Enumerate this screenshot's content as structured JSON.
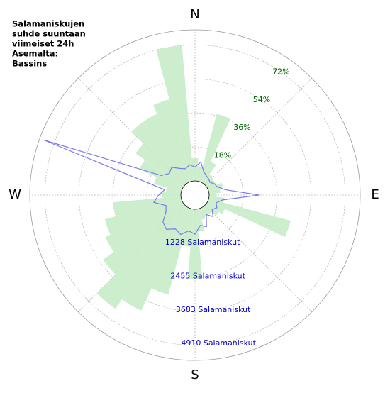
{
  "chart_data": {
    "type": "polar",
    "title_lines": [
      "Salamaniskujen",
      "suhde suuntaan",
      "viimeiset 24h",
      "Asemalta:",
      "Bassins"
    ],
    "x": [
      0,
      10,
      20,
      30,
      40,
      50,
      60,
      70,
      80,
      90,
      100,
      110,
      120,
      130,
      140,
      150,
      160,
      170,
      180,
      190,
      200,
      210,
      220,
      230,
      240,
      250,
      260,
      270,
      280,
      290,
      300,
      310,
      320,
      330,
      340,
      350
    ],
    "xticks": [
      {
        "value": 0,
        "label": "N"
      },
      {
        "value": 90,
        "label": "E"
      },
      {
        "value": 180,
        "label": "S"
      },
      {
        "value": 270,
        "label": "W"
      }
    ],
    "angular_grid": [
      0,
      45,
      90,
      135,
      180,
      225,
      270,
      315
    ],
    "series": [
      {
        "color": "#c8ecc8",
        "values": [
          12,
          8,
          37,
          12,
          6,
          5,
          5,
          8,
          6,
          4,
          8,
          45,
          10,
          8,
          5,
          5,
          6,
          12,
          37,
          20,
          47,
          60,
          66,
          52,
          45,
          42,
          36,
          10,
          8,
          15,
          25,
          31,
          40,
          40,
          45,
          72
        ]
      },
      {
        "color": "#7a7aee",
        "axis": "y2",
        "values": [
          500,
          700,
          400,
          300,
          250,
          200,
          300,
          350,
          600,
          1800,
          500,
          300,
          400,
          300,
          500,
          300,
          700,
          600,
          900,
          800,
          1000,
          900,
          1100,
          1000,
          700,
          600,
          1000,
          800,
          600,
          5300,
          900,
          700,
          800,
          600,
          500,
          600
        ]
      }
    ],
    "ylim": [
      0,
      80
    ],
    "yticks": [
      {
        "value": 18,
        "label": "18%"
      },
      {
        "value": 36,
        "label": "36%"
      },
      {
        "value": 54,
        "label": "54%"
      },
      {
        "value": 72,
        "label": "72%"
      }
    ],
    "y2lim": [
      0,
      5455
    ],
    "y2ticks": [
      {
        "value": 1228,
        "label": "1228 Salamaniskut"
      },
      {
        "value": 2455,
        "label": "2455 Salamaniskut"
      },
      {
        "value": 3683,
        "label": "3683 Salamaniskut"
      },
      {
        "value": 4910,
        "label": "4910 Salamaniskut"
      }
    ],
    "grid": true
  }
}
